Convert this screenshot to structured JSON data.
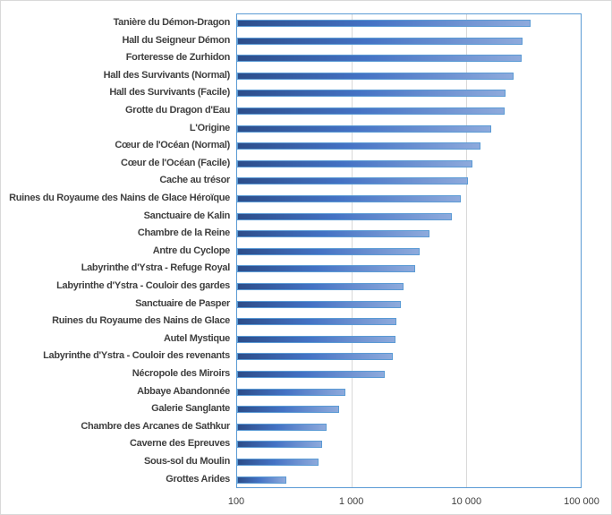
{
  "chart_data": {
    "type": "bar",
    "orientation": "horizontal",
    "title": "",
    "xlabel": "",
    "ylabel": "",
    "x_scale": "log",
    "xlim": [
      100,
      100000
    ],
    "x_ticks": [
      "100",
      "1 000",
      "10 000",
      "100 000"
    ],
    "grid": true,
    "legend": null,
    "categories": [
      "Tanière du Démon-Dragon",
      "Hall du Seigneur Démon",
      "Forteresse de Zurhidon",
      "Hall des Survivants (Normal)",
      "Hall des Survivants (Facile)",
      "Grotte du Dragon d'Eau",
      "L'Origine",
      "Cœur de l'Océan (Normal)",
      "Cœur de l'Océan (Facile)",
      "Cache au trésor",
      "Ruines du Royaume des Nains de Glace Héroïque",
      "Sanctuaire de Kalin",
      "Chambre de la Reine",
      "Antre du Cyclope",
      "Labyrinthe d'Ystra - Refuge Royal",
      "Labyrinthe d'Ystra - Couloir des gardes",
      "Sanctuaire de Pasper",
      "Ruines du Royaume des Nains de Glace",
      "Autel Mystique",
      "Labyrinthe d'Ystra - Couloir des revenants",
      "Nécropole des Miroirs",
      "Abbaye Abandonnée",
      "Galerie Sanglante",
      "Chambre des Arcanes de Sathkur",
      "Caverne des Epreuves",
      "Sous-sol du Moulin",
      "Grottes Arides"
    ],
    "values": [
      35600,
      30400,
      29800,
      25400,
      21600,
      21200,
      16000,
      13100,
      11000,
      10200,
      8700,
      7300,
      4650,
      3830,
      3500,
      2770,
      2630,
      2400,
      2360,
      2240,
      1910,
      870,
      770,
      600,
      550,
      510,
      268
    ],
    "colors": {
      "bar_start": "#2c4d8a",
      "bar_mid": "#4472c4",
      "bar_end": "#8eaadc",
      "bar_border": "#5b9bd5",
      "grid": "#d9d9d9",
      "text": "#404040"
    }
  }
}
